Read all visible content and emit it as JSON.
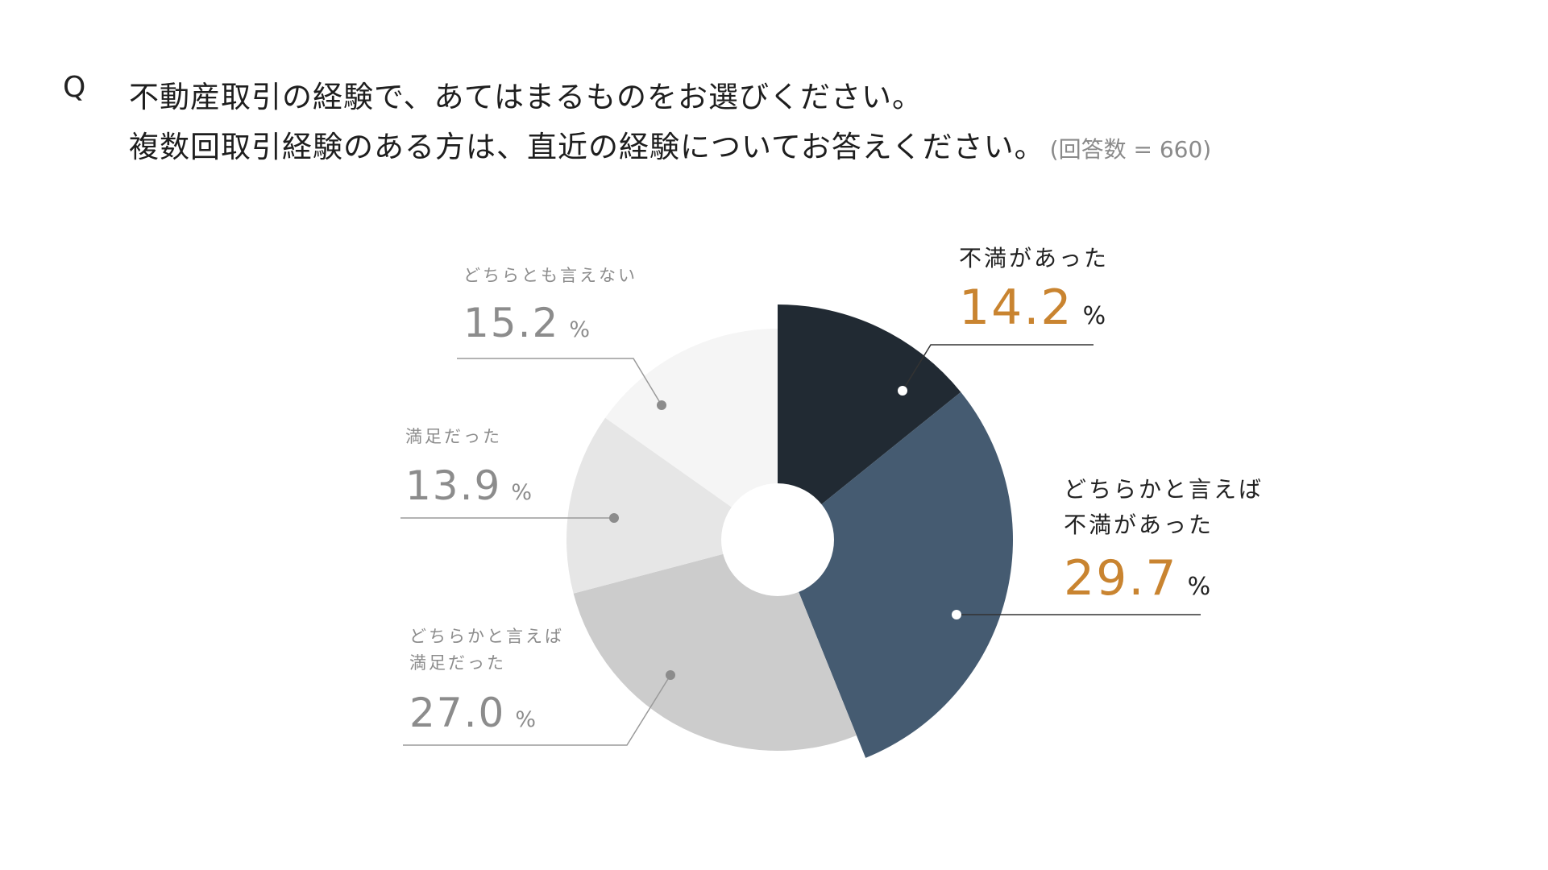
{
  "question": {
    "mark": "Q",
    "line1": "不動産取引の経験で、あてはまるものをお選びください。",
    "line2": "複数回取引経験のある方は、直近の経験についてお答えください。",
    "note": "(回答数 = 660)"
  },
  "chart_data": {
    "type": "pie",
    "title": "",
    "unit": "%",
    "slices": [
      {
        "label": "不満があった",
        "value": 14.2,
        "color": "#212a33",
        "value_color": "#c98430",
        "label_color": "#222222"
      },
      {
        "label": "どちらかと言えば 不満があった",
        "value": 29.7,
        "color": "#455b71",
        "value_color": "#c98430",
        "label_color": "#222222"
      },
      {
        "label": "どちらかと言えば 満足だった",
        "value": 27.0,
        "color": "#cccccc",
        "value_color": "#8c8c8c",
        "label_color": "#8c8c8c"
      },
      {
        "label": "満足だった",
        "value": 13.9,
        "color": "#e6e6e6",
        "value_color": "#8c8c8c",
        "label_color": "#8c8c8c"
      },
      {
        "label": "どちらとも言えない",
        "value": 15.2,
        "color": "#f5f5f5",
        "value_color": "#8c8c8c",
        "label_color": "#8c8c8c"
      }
    ]
  }
}
